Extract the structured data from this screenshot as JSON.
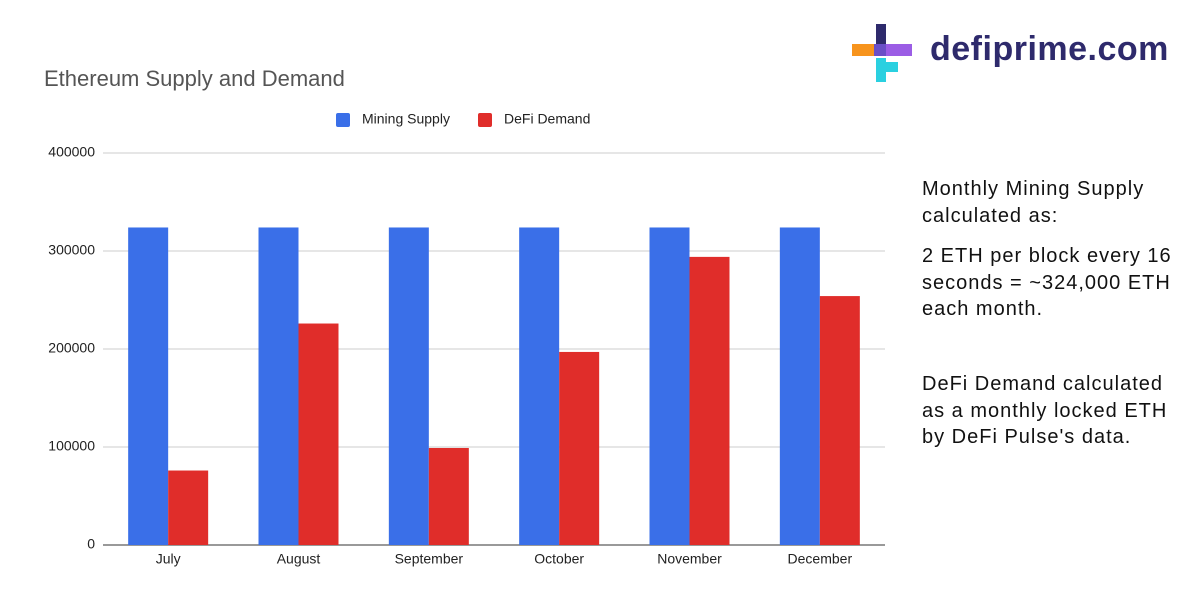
{
  "brand": "defiprime.com",
  "chart_data": {
    "type": "bar",
    "title": "Ethereum Supply and Demand",
    "categories": [
      "July",
      "August",
      "September",
      "October",
      "November",
      "December"
    ],
    "series": [
      {
        "name": "Mining Supply",
        "color": "#3a6fe8",
        "values": [
          324000,
          324000,
          324000,
          324000,
          324000,
          324000
        ]
      },
      {
        "name": "DeFi Demand",
        "color": "#e02d2a",
        "values": [
          76000,
          226000,
          99000,
          197000,
          294000,
          254000
        ]
      }
    ],
    "ylim": [
      0,
      400000
    ],
    "yticks": [
      0,
      100000,
      200000,
      300000,
      400000
    ],
    "grid": true,
    "legend": "top",
    "annotations": [
      "Monthly Mining Supply calculated as:",
      "2 ETH per block every 16 seconds = ~324,000 ETH each month.",
      "DeFi Demand calculated as a monthly locked ETH by DeFi Pulse's data."
    ]
  }
}
